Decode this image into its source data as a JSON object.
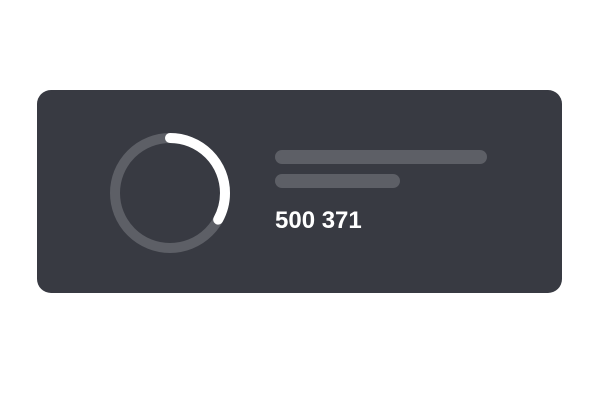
{
  "card": {
    "value": "500 371",
    "progress": 0.33,
    "colors": {
      "background": "#383a42",
      "track": "#5d5f66",
      "accent": "#ffffff"
    }
  }
}
